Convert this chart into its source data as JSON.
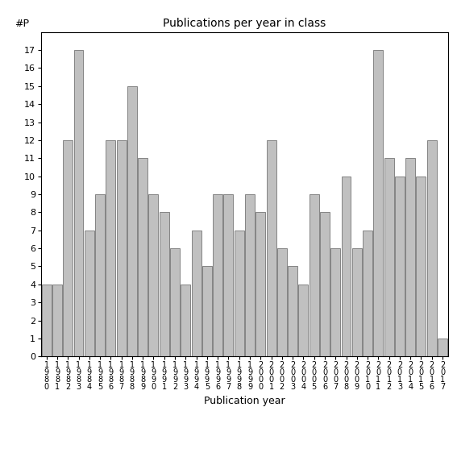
{
  "title": "Publications per year in class",
  "xlabel": "Publication year",
  "ylabel": "#P",
  "years": [
    1980,
    1981,
    1982,
    1983,
    1984,
    1985,
    1986,
    1987,
    1988,
    1989,
    1990,
    1991,
    1992,
    1993,
    1994,
    1995,
    1996,
    1997,
    1998,
    1999,
    2000,
    2001,
    2002,
    2003,
    2004,
    2005,
    2006,
    2007,
    2008,
    2009,
    2010,
    2011,
    2012,
    2013,
    2014,
    2015,
    2016,
    2017
  ],
  "values": [
    4,
    4,
    12,
    17,
    7,
    9,
    12,
    12,
    15,
    11,
    9,
    8,
    6,
    4,
    7,
    5,
    9,
    9,
    7,
    9,
    8,
    12,
    6,
    5,
    4,
    9,
    8,
    6,
    10,
    6,
    7,
    17,
    11,
    10,
    11,
    10,
    12,
    1
  ],
  "bar_color": "#c0c0c0",
  "bar_edge_color": "#606060",
  "ylim": [
    0,
    18
  ],
  "yticks": [
    0,
    1,
    2,
    3,
    4,
    5,
    6,
    7,
    8,
    9,
    10,
    11,
    12,
    13,
    14,
    15,
    16,
    17
  ],
  "title_fontsize": 10,
  "axis_label_fontsize": 9,
  "tick_fontsize": 8,
  "xtick_fontsize": 7
}
